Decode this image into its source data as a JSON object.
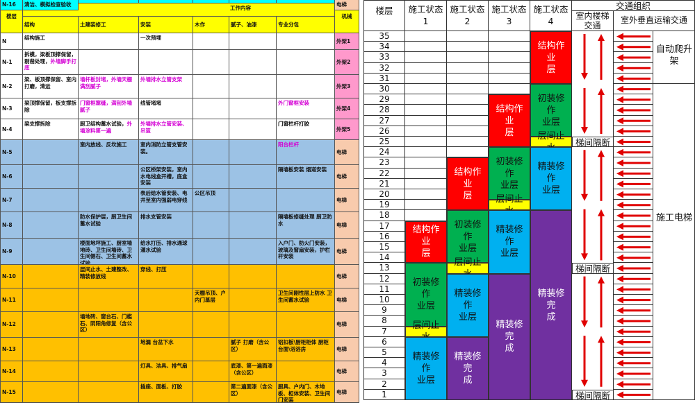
{
  "left_table": {
    "headers": {
      "floor": "楼层",
      "work_content": "工作内容",
      "machinery": "机械",
      "columns": [
        "结构",
        "土建装修工",
        "安装",
        "木作",
        "腻子、油漆",
        "专业分包"
      ]
    },
    "rows": [
      {
        "floor": "N",
        "cells": [
          "结构施工",
          "",
          "一次预埋",
          "",
          "",
          ""
        ],
        "machinery": "外架1"
      },
      {
        "floor": "N-1",
        "cells": [
          "拆模，梁板顶撑保留，剔凿处理，",
          "",
          "",
          "",
          "",
          ""
        ],
        "cell1_magenta": "外墙脚手打底",
        "machinery": "外架2"
      },
      {
        "floor": "N-2",
        "cells": [
          "梁、板顶撑保留、室内打磨，清运",
          "",
          "",
          "",
          "",
          ""
        ],
        "cell1_magenta": "",
        "cell2_magenta": "墙杆板封堵，外墙天棚满刮腻子",
        "cell3_magenta": "外墙排水立管支架",
        "machinery": "外架3"
      },
      {
        "floor": "N-3",
        "cells": [
          "梁顶撑保留，板支撑拆除",
          "",
          "线管堵堵",
          "",
          "",
          ""
        ],
        "cell2_magenta": "门窗框塞缝，满刮外墙腻子",
        "cell6_magenta": "外门窗框安装",
        "machinery": "外架4"
      },
      {
        "floor": "N-4",
        "cells": [
          "梁支撑拆除",
          "厨卫结构蓄水试验，",
          "",
          "",
          "",
          "门窗栏杆打胶"
        ],
        "cell2_magenta": "外墙涂料第一遍",
        "cell3_magenta": "外墙排水立管安装、吊篮",
        "machinery": "外架5"
      },
      {
        "floor": "N-5",
        "cells": [
          "",
          "室内放线、反坎施工",
          "室内消防立管支管安装。",
          "",
          "",
          ""
        ],
        "cell6_magenta": "阳台栏杆",
        "machinery": "电梯"
      },
      {
        "floor": "N-6",
        "cells": [
          "",
          "",
          "公区桥架安装，室内水电线盒开槽，底盒安装",
          "",
          "",
          "隔墙板安装 烟道安装"
        ],
        "machinery": "电梯"
      },
      {
        "floor": "N-7",
        "cells": [
          "",
          "",
          "表后给水管安装、电井至室内强弱电穿线",
          "公区吊顶",
          "",
          ""
        ],
        "machinery": "电梯"
      },
      {
        "floor": "N-8",
        "cells": [
          "",
          "防水保护层，厨卫生间蓄水试验",
          "排水支管安装",
          "",
          "",
          "隔墙板修缝处理 厨卫防水"
        ],
        "machinery": "电梯"
      },
      {
        "floor": "N-9",
        "cells": [
          "",
          "楼面地坪施工、厨室墙地砖、卫生间墙砖、卫生间侧石、卫生间蓄水试验",
          "给水打压、排水通球灌水试验",
          "",
          "",
          "入户门、防火门安装，玻璃及窗扇安装，护栏杆安装"
        ],
        "machinery": "电梯"
      },
      {
        "floor": "N-10",
        "cells": [
          "",
          "层间止水、土建整改、精装修放线",
          "穿线、打压",
          "",
          "",
          ""
        ],
        "machinery": "电梯"
      },
      {
        "floor": "N-11",
        "cells": [
          "",
          "",
          "",
          "天棚吊顶、户内门基层",
          "",
          "卫生间刚性层上防水 卫生间蓄水试验"
        ],
        "machinery": "电梯"
      },
      {
        "floor": "N-12",
        "cells": [
          "",
          "墙地砖、窗台石、门槛石、阴阳角修复（含公区）",
          "",
          "",
          "",
          ""
        ],
        "machinery": "电梯"
      },
      {
        "floor": "N-13",
        "cells": [
          "",
          "",
          "地漏 台盆下水",
          "",
          "腻子 打磨（含公区）",
          "铝扣板\\厨柜柜体 厨柜台面\\浴浴房"
        ],
        "machinery": "电梯"
      },
      {
        "floor": "N-14",
        "cells": [
          "",
          "",
          "灯具、洁具、排气扇",
          "",
          "底漆、第一遍面漆（含公区）",
          ""
        ],
        "machinery": "电梯"
      },
      {
        "floor": "N-15",
        "cells": [
          "",
          "",
          "插座、面板、打胶",
          "",
          "第二遍面漆（含公区）",
          "厨具、户内门、木地板、柜体安装、卫生间门安装"
        ],
        "machinery": "电梯"
      },
      {
        "floor": "N-16",
        "cells": [
          "清洁、模拟检查验收",
          "",
          "",
          "",
          "",
          ""
        ],
        "machinery": "电梯"
      }
    ]
  },
  "right_table": {
    "headers": {
      "floor": "楼层",
      "states": [
        "施工状态\n1",
        "施工状态\n2",
        "施工状态\n3",
        "施工状态\n4"
      ],
      "traffic_group": "交通组织",
      "indoor_stairs": "室内楼梯\n交通",
      "outdoor_vertical": "室外垂直运输交通"
    },
    "floors": [
      "35",
      "34",
      "33",
      "32",
      "31",
      "30",
      "29",
      "28",
      "27",
      "26",
      "25",
      "24",
      "23",
      "22",
      "21",
      "20",
      "19",
      "18",
      "17",
      "16",
      "15",
      "14",
      "13",
      "12",
      "11",
      "10",
      "9",
      "8",
      "7",
      "6",
      "5",
      "4",
      "3",
      "2",
      "1"
    ],
    "blocks": {
      "structure": "结构作业\n层",
      "rough": "初装修作\n业层",
      "fine": "精装修作\n业层",
      "done": "精装修完\n成",
      "stop_water": "层间止水"
    },
    "stair_separator": "梯间隔断",
    "outdoor_labels": {
      "climbing": "自动爬升\n架",
      "elevator": "施工电梯"
    }
  },
  "colors": {
    "yellow": "#ffff00",
    "pink": "#ff99cc",
    "blue": "#9cc2e5",
    "orange": "#ffc000",
    "cyan": "#00ffff",
    "red": "#ff0000",
    "green": "#00b050",
    "sky": "#00b0f0",
    "purple": "#7030a0",
    "arrow_red": "#e00000"
  }
}
